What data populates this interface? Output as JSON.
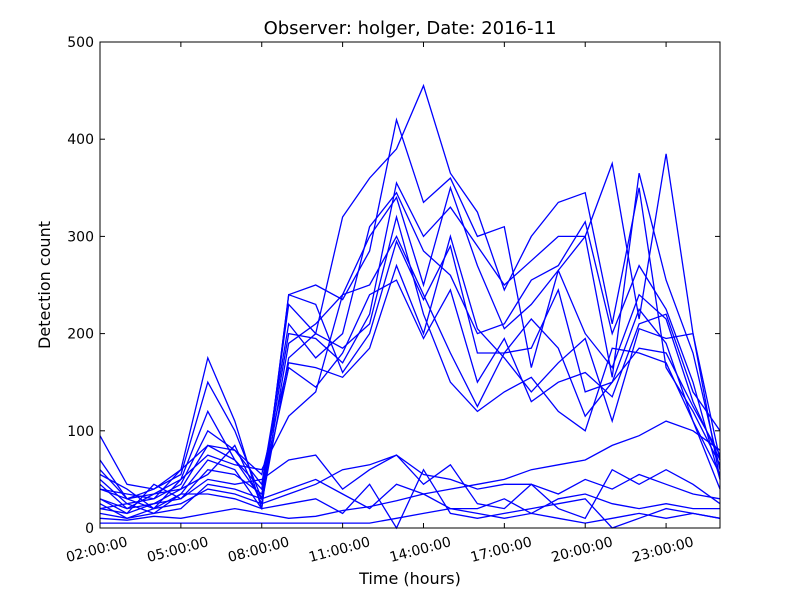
{
  "chart_data": {
    "type": "line",
    "title": "Observer: holger, Date: 2016-11",
    "xlabel": "Time (hours)",
    "ylabel": "Detection count",
    "ylim": [
      0,
      500
    ],
    "xlim": [
      2,
      25
    ],
    "x_ticks": [
      2,
      5,
      8,
      11,
      14,
      17,
      20,
      23
    ],
    "x_tick_labels": [
      "02:00:00",
      "05:00:00",
      "08:00:00",
      "11:00:00",
      "14:00:00",
      "17:00:00",
      "20:00:00",
      "23:00:00"
    ],
    "y_ticks": [
      0,
      100,
      200,
      300,
      400,
      500
    ],
    "y_tick_labels": [
      "0",
      "100",
      "200",
      "300",
      "400",
      "500"
    ],
    "grid": false,
    "line_color": "#0000ff",
    "x": [
      2,
      3,
      4,
      5,
      6,
      7,
      8,
      9,
      10,
      11,
      12,
      13,
      14,
      15,
      16,
      17,
      18,
      19,
      20,
      21,
      22,
      23,
      24,
      25
    ],
    "series": [
      {
        "values": [
          50,
          25,
          30,
          60,
          175,
          110,
          20,
          240,
          250,
          235,
          285,
          420,
          335,
          360,
          300,
          310,
          165,
          265,
          300,
          375,
          215,
          385,
          200,
          70
        ]
      },
      {
        "values": [
          95,
          45,
          40,
          55,
          150,
          100,
          30,
          230,
          200,
          320,
          360,
          390,
          455,
          365,
          325,
          245,
          300,
          335,
          345,
          210,
          350,
          165,
          120,
          65
        ]
      },
      {
        "values": [
          60,
          30,
          35,
          50,
          120,
          70,
          40,
          200,
          195,
          170,
          220,
          355,
          300,
          330,
          290,
          250,
          275,
          300,
          300,
          155,
          365,
          255,
          180,
          60
        ]
      },
      {
        "values": [
          40,
          35,
          30,
          45,
          100,
          80,
          45,
          210,
          175,
          200,
          310,
          345,
          285,
          260,
          200,
          210,
          255,
          270,
          315,
          200,
          270,
          225,
          150,
          50
        ]
      },
      {
        "values": [
          30,
          20,
          25,
          40,
          85,
          70,
          30,
          190,
          210,
          240,
          300,
          340,
          250,
          350,
          270,
          205,
          230,
          265,
          200,
          165,
          240,
          215,
          130,
          70
        ]
      },
      {
        "values": [
          55,
          40,
          20,
          35,
          70,
          60,
          20,
          240,
          230,
          160,
          200,
          295,
          235,
          290,
          180,
          180,
          185,
          245,
          140,
          150,
          225,
          190,
          110,
          40
        ]
      },
      {
        "values": [
          70,
          30,
          40,
          60,
          85,
          80,
          55,
          170,
          165,
          155,
          185,
          270,
          200,
          300,
          205,
          175,
          140,
          170,
          195,
          110,
          205,
          195,
          200,
          50
        ]
      },
      {
        "values": [
          20,
          15,
          45,
          30,
          60,
          55,
          35,
          165,
          145,
          180,
          240,
          255,
          195,
          245,
          150,
          195,
          130,
          150,
          160,
          135,
          210,
          220,
          140,
          100
        ]
      },
      {
        "values": [
          25,
          10,
          20,
          50,
          75,
          65,
          60,
          115,
          140,
          240,
          250,
          300,
          240,
          180,
          125,
          180,
          215,
          185,
          115,
          150,
          185,
          180,
          125,
          75
        ]
      },
      {
        "values": [
          45,
          20,
          35,
          40,
          55,
          85,
          25,
          175,
          200,
          185,
          210,
          320,
          220,
          150,
          120,
          140,
          155,
          120,
          100,
          185,
          180,
          170,
          110,
          55
        ]
      },
      {
        "values": [
          30,
          15,
          25,
          30,
          50,
          45,
          50,
          70,
          75,
          40,
          60,
          75,
          45,
          65,
          25,
          20,
          45,
          20,
          10,
          60,
          45,
          60,
          45,
          25
        ]
      },
      {
        "values": [
          15,
          10,
          15,
          20,
          45,
          40,
          30,
          40,
          50,
          35,
          20,
          45,
          35,
          20,
          20,
          30,
          15,
          30,
          35,
          25,
          20,
          25,
          20,
          20
        ]
      },
      {
        "values": [
          20,
          25,
          15,
          35,
          35,
          30,
          20,
          25,
          30,
          15,
          45,
          0,
          60,
          15,
          10,
          15,
          20,
          25,
          30,
          0,
          10,
          20,
          15,
          10
        ]
      },
      {
        "values": [
          10,
          8,
          12,
          10,
          15,
          20,
          15,
          10,
          12,
          18,
          22,
          28,
          35,
          40,
          45,
          50,
          60,
          65,
          70,
          85,
          95,
          110,
          100,
          80
        ]
      },
      {
        "values": [
          40,
          30,
          20,
          25,
          40,
          35,
          25,
          35,
          45,
          60,
          65,
          75,
          55,
          50,
          40,
          45,
          45,
          35,
          50,
          40,
          55,
          45,
          35,
          30
        ]
      },
      {
        "values": [
          5,
          5,
          5,
          5,
          5,
          5,
          5,
          5,
          5,
          5,
          5,
          10,
          15,
          20,
          15,
          10,
          15,
          10,
          5,
          10,
          15,
          10,
          15,
          10
        ]
      }
    ]
  }
}
